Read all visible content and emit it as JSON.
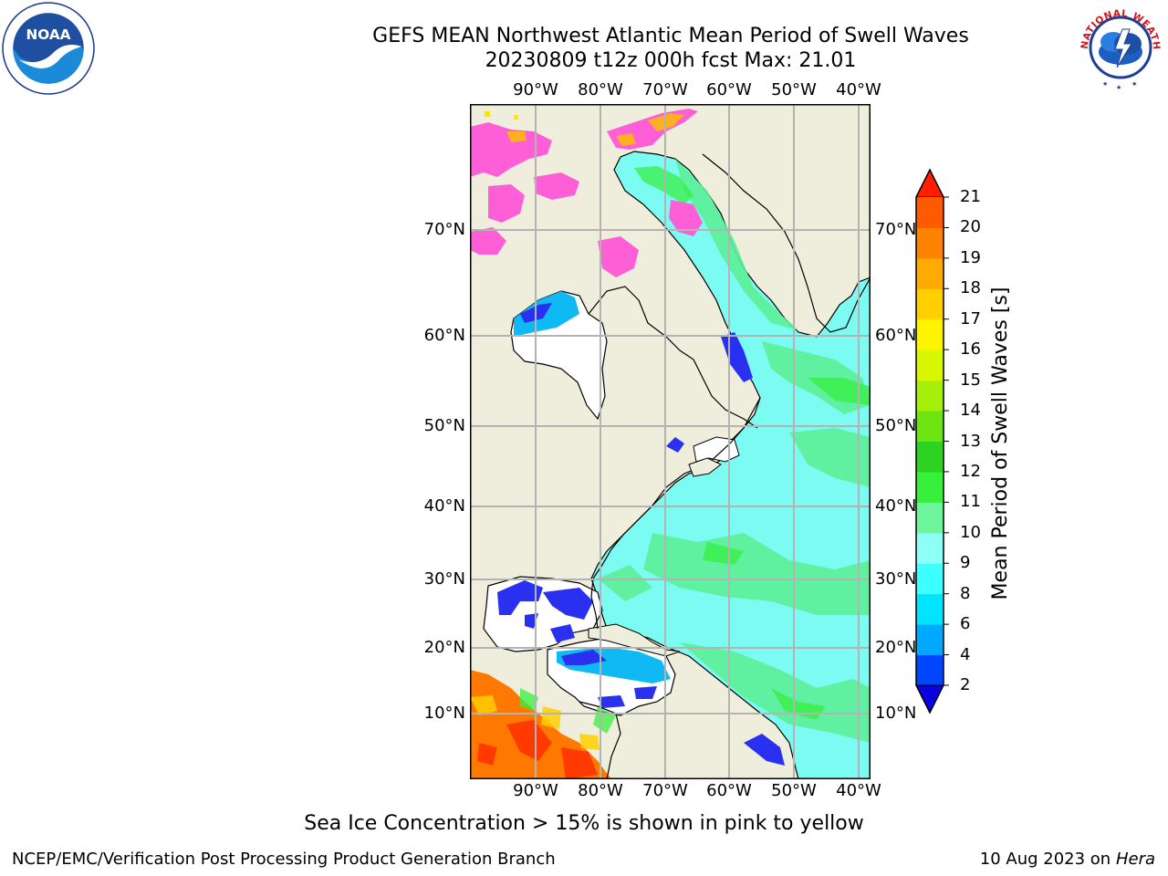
{
  "title_line1": "GEFS MEAN Northwest Atlantic Mean Period of Swell Waves",
  "title_line2": "20230809 t12z 000h fcst   Max: 21.01",
  "logos": {
    "left": "noaa-logo",
    "left_text": "NOAA",
    "right": "nws-logo",
    "right_text": "NATIONAL WEATHER SERVICE"
  },
  "lon_labels": [
    "90°W",
    "80°W",
    "70°W",
    "60°W",
    "50°W",
    "40°W"
  ],
  "lat_labels": [
    "70°N",
    "60°N",
    "50°N",
    "40°N",
    "30°N",
    "20°N",
    "10°N"
  ],
  "colorbar": {
    "label": "Mean Period of Swell Waves [s]",
    "ticks": [
      "2",
      "4",
      "6",
      "8",
      "9",
      "10",
      "11",
      "12",
      "13",
      "14",
      "15",
      "16",
      "17",
      "18",
      "19",
      "20",
      "21"
    ],
    "colors": [
      "#0046ff",
      "#00a8ff",
      "#00e4ff",
      "#3dffff",
      "#8dfff6",
      "#6cf59a",
      "#36f03c",
      "#2ed321",
      "#6ee413",
      "#a5ef0a",
      "#d8f700",
      "#fff400",
      "#ffcf00",
      "#ffaa00",
      "#ff8200",
      "#ff5a00"
    ],
    "under_color": "#0a00e0",
    "over_color": "#ff1f00"
  },
  "note": "Sea Ice Concentration > 15% is shown in pink to yellow",
  "footer_left": "NCEP/EMC/Verification Post Processing Product Generation Branch",
  "footer_date": "10 Aug 2023 on",
  "footer_host": "Hera",
  "map_colors": {
    "land": "#efeedc",
    "ocean_main": "#7cfbf2",
    "ice_pink": "#ff5fd6",
    "lake_white": "#ffffff"
  }
}
